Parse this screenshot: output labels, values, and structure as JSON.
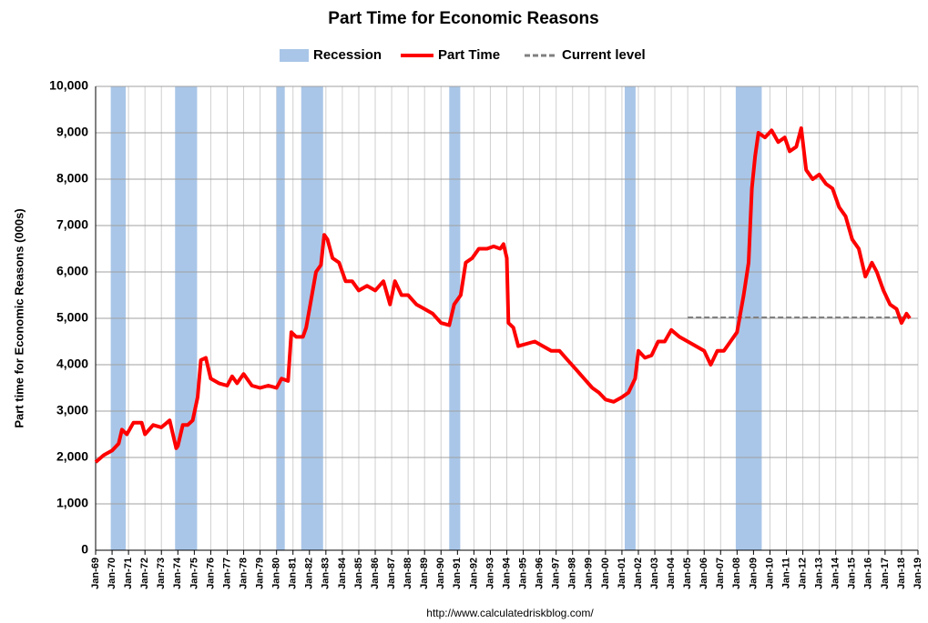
{
  "chart_data": {
    "type": "line",
    "title": "Part Time for Economic Reasons",
    "y_label": "Part time for Economic Reasons (000s)",
    "source": "http://www.calculatedriskblog.com/",
    "legend_position": "top",
    "grid": true,
    "xlim": [
      1969,
      2019
    ],
    "xticks": [
      {
        "value": 1969,
        "label": "Jan-69"
      },
      {
        "value": 1970,
        "label": "Jan-70"
      },
      {
        "value": 1971,
        "label": "Jan-71"
      },
      {
        "value": 1972,
        "label": "Jan-72"
      },
      {
        "value": 1973,
        "label": "Jan-73"
      },
      {
        "value": 1974,
        "label": "Jan-74"
      },
      {
        "value": 1975,
        "label": "Jan-75"
      },
      {
        "value": 1976,
        "label": "Jan-76"
      },
      {
        "value": 1977,
        "label": "Jan-77"
      },
      {
        "value": 1978,
        "label": "Jan-78"
      },
      {
        "value": 1979,
        "label": "Jan-79"
      },
      {
        "value": 1980,
        "label": "Jan-80"
      },
      {
        "value": 1981,
        "label": "Jan-81"
      },
      {
        "value": 1982,
        "label": "Jan-82"
      },
      {
        "value": 1983,
        "label": "Jan-83"
      },
      {
        "value": 1984,
        "label": "Jan-84"
      },
      {
        "value": 1985,
        "label": "Jan-85"
      },
      {
        "value": 1986,
        "label": "Jan-86"
      },
      {
        "value": 1987,
        "label": "Jan-87"
      },
      {
        "value": 1988,
        "label": "Jan-88"
      },
      {
        "value": 1989,
        "label": "Jan-89"
      },
      {
        "value": 1990,
        "label": "Jan-90"
      },
      {
        "value": 1991,
        "label": "Jan-91"
      },
      {
        "value": 1992,
        "label": "Jan-92"
      },
      {
        "value": 1993,
        "label": "Jan-93"
      },
      {
        "value": 1994,
        "label": "Jan-94"
      },
      {
        "value": 1995,
        "label": "Jan-95"
      },
      {
        "value": 1996,
        "label": "Jan-96"
      },
      {
        "value": 1997,
        "label": "Jan-97"
      },
      {
        "value": 1998,
        "label": "Jan-98"
      },
      {
        "value": 1999,
        "label": "Jan-99"
      },
      {
        "value": 2000,
        "label": "Jan-00"
      },
      {
        "value": 2001,
        "label": "Jan-01"
      },
      {
        "value": 2002,
        "label": "Jan-02"
      },
      {
        "value": 2003,
        "label": "Jan-03"
      },
      {
        "value": 2004,
        "label": "Jan-04"
      },
      {
        "value": 2005,
        "label": "Jan-05"
      },
      {
        "value": 2006,
        "label": "Jan-06"
      },
      {
        "value": 2007,
        "label": "Jan-07"
      },
      {
        "value": 2008,
        "label": "Jan-08"
      },
      {
        "value": 2009,
        "label": "Jan-09"
      },
      {
        "value": 2010,
        "label": "Jan-10"
      },
      {
        "value": 2011,
        "label": "Jan-11"
      },
      {
        "value": 2012,
        "label": "Jan-12"
      },
      {
        "value": 2013,
        "label": "Jan-13"
      },
      {
        "value": 2014,
        "label": "Jan-14"
      },
      {
        "value": 2015,
        "label": "Jan-15"
      },
      {
        "value": 2016,
        "label": "Jan-16"
      },
      {
        "value": 2017,
        "label": "Jan-17"
      },
      {
        "value": 2018,
        "label": "Jan-18"
      },
      {
        "value": 2019,
        "label": "Jan-19"
      }
    ],
    "ylim": [
      0,
      10000
    ],
    "yticks": [
      0,
      {
        "value": 1000,
        "label": "1,000"
      },
      {
        "value": 2000,
        "label": "2,000"
      },
      {
        "value": 3000,
        "label": "3,000"
      },
      {
        "value": 4000,
        "label": "4,000"
      },
      {
        "value": 5000,
        "label": "5,000"
      },
      {
        "value": 6000,
        "label": "6,000"
      },
      {
        "value": 7000,
        "label": "7,000"
      },
      {
        "value": 8000,
        "label": "8,000"
      },
      {
        "value": 9000,
        "label": "9,000"
      },
      {
        "value": 10000,
        "label": "10,000"
      }
    ],
    "recessions": {
      "name": "Recession",
      "color": "#a9c6e8",
      "periods": [
        [
          1969.92,
          1970.83
        ],
        [
          1973.83,
          1975.17
        ],
        [
          1980.0,
          1980.5
        ],
        [
          1981.5,
          1982.83
        ],
        [
          1990.5,
          1991.17
        ],
        [
          2001.17,
          2001.83
        ],
        [
          2007.92,
          2009.5
        ]
      ]
    },
    "current_level": {
      "name": "Current level",
      "color": "#808080",
      "value": 5020,
      "x": [
        2005,
        2018.5
      ]
    },
    "series": [
      {
        "name": "Part Time",
        "color": "#ff0000",
        "x": [
          1969.0,
          1969.5,
          1970.0,
          1970.4,
          1970.6,
          1970.9,
          1971.3,
          1971.8,
          1972.0,
          1972.5,
          1973.0,
          1973.5,
          1973.9,
          1974.0,
          1974.3,
          1974.6,
          1974.9,
          1975.2,
          1975.4,
          1975.7,
          1976.0,
          1976.5,
          1977.0,
          1977.3,
          1977.6,
          1978.0,
          1978.5,
          1979.0,
          1979.5,
          1980.0,
          1980.3,
          1980.7,
          1980.9,
          1981.2,
          1981.6,
          1981.8,
          1982.1,
          1982.4,
          1982.7,
          1982.9,
          1983.1,
          1983.4,
          1983.8,
          1984.2,
          1984.6,
          1985.0,
          1985.5,
          1986.0,
          1986.5,
          1986.9,
          1987.2,
          1987.6,
          1988.0,
          1988.5,
          1989.0,
          1989.5,
          1990.0,
          1990.5,
          1990.8,
          1991.2,
          1991.5,
          1991.9,
          1992.3,
          1992.8,
          1993.2,
          1993.6,
          1993.8,
          1994.0,
          1994.1,
          1994.4,
          1994.7,
          1995.2,
          1995.7,
          1996.2,
          1996.7,
          1997.2,
          1997.7,
          1998.2,
          1998.7,
          1999.2,
          1999.6,
          2000.0,
          2000.5,
          2001.0,
          2001.4,
          2001.8,
          2002.0,
          2002.4,
          2002.8,
          2003.2,
          2003.6,
          2004.0,
          2004.5,
          2005.0,
          2005.5,
          2006.0,
          2006.4,
          2006.8,
          2007.2,
          2007.6,
          2008.0,
          2008.4,
          2008.7,
          2008.9,
          2009.1,
          2009.3,
          2009.7,
          2010.1,
          2010.5,
          2010.9,
          2011.2,
          2011.6,
          2011.9,
          2012.2,
          2012.6,
          2013.0,
          2013.4,
          2013.8,
          2014.2,
          2014.6,
          2015.0,
          2015.4,
          2015.8,
          2016.2,
          2016.5,
          2016.9,
          2017.3,
          2017.7,
          2018.0,
          2018.3,
          2018.5
        ],
        "values": [
          1900,
          2050,
          2150,
          2300,
          2600,
          2500,
          2750,
          2750,
          2500,
          2700,
          2650,
          2800,
          2200,
          2250,
          2700,
          2700,
          2800,
          3300,
          4100,
          4150,
          3700,
          3600,
          3550,
          3750,
          3600,
          3800,
          3550,
          3500,
          3550,
          3500,
          3700,
          3650,
          4700,
          4600,
          4600,
          4800,
          5400,
          6000,
          6150,
          6800,
          6700,
          6300,
          6200,
          5800,
          5800,
          5600,
          5700,
          5600,
          5800,
          5300,
          5800,
          5500,
          5500,
          5300,
          5200,
          5100,
          4900,
          4850,
          5300,
          5500,
          6200,
          6300,
          6500,
          6500,
          6550,
          6500,
          6600,
          6300,
          4900,
          4800,
          4400,
          4450,
          4500,
          4400,
          4300,
          4300,
          4100,
          3900,
          3700,
          3500,
          3400,
          3250,
          3200,
          3300,
          3400,
          3700,
          4300,
          4150,
          4200,
          4500,
          4500,
          4750,
          4600,
          4500,
          4400,
          4300,
          4000,
          4300,
          4300,
          4500,
          4700,
          5500,
          6200,
          7800,
          8500,
          9000,
          8900,
          9050,
          8800,
          8900,
          8600,
          8700,
          9100,
          8200,
          8000,
          8100,
          7900,
          7800,
          7400,
          7200,
          6700,
          6500,
          5900,
          6200,
          6000,
          5600,
          5300,
          5200,
          4900,
          5100,
          5000
        ]
      }
    ]
  }
}
